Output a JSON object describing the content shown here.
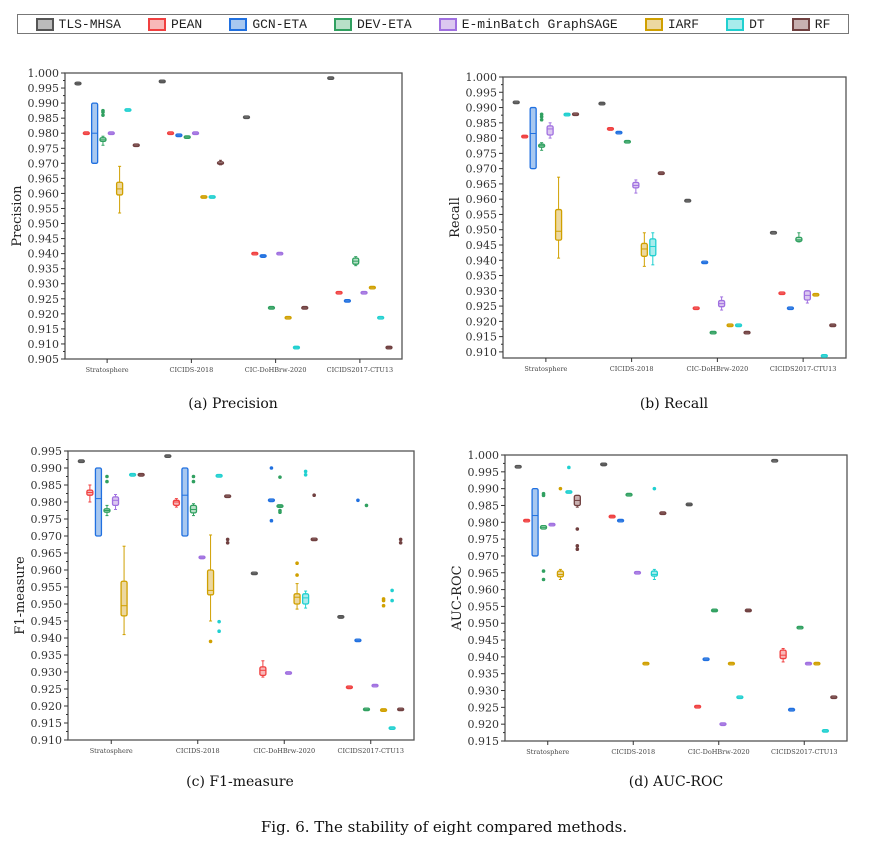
{
  "legend": [
    {
      "name": "TLS-MHSA",
      "edge": "#555555",
      "fill": "#bbbbbb"
    },
    {
      "name": "PEAN",
      "edge": "#f04040",
      "fill": "#f8b8b8"
    },
    {
      "name": "GCN-ETA",
      "edge": "#2070e0",
      "fill": "#a8c8f0"
    },
    {
      "name": "DEV-ETA",
      "edge": "#30a060",
      "fill": "#b8e0c8"
    },
    {
      "name": "E-minBatch GraphSAGE",
      "edge": "#a070e0",
      "fill": "#dcc8f0"
    },
    {
      "name": "IARF",
      "edge": "#d0a000",
      "fill": "#ecd8a0"
    },
    {
      "name": "DT",
      "edge": "#20d0d0",
      "fill": "#a8ecec"
    },
    {
      "name": "RF",
      "edge": "#704040",
      "fill": "#c8b0b0"
    }
  ],
  "caption": "Fig. 6.  The stability of eight compared methods.",
  "chart_data": [
    {
      "type": "box",
      "caption": "(a)  Precision",
      "ylabel": "Precision",
      "ylim": [
        0.905,
        1.0
      ],
      "ytick_step": 0.005,
      "categories": [
        "Stratosphere",
        "CICIDS-2018",
        "CIC-DoHBrw-2020",
        "CICIDS2017-CTU13"
      ],
      "values": [
        [
          [
            0.996,
            0.9962,
            0.9965,
            0.9968,
            0.997
          ],
          0.98,
          [
            0.97,
            0.97,
            0.98,
            0.99,
            0.99
          ],
          {
            "box": [
              0.976,
              0.9773,
              0.9778,
              0.9785,
              0.979
            ],
            "outliers": [
              0.986,
              0.987,
              0.9875
            ]
          },
          0.98,
          [
            0.9535,
            0.9595,
            0.9615,
            0.9637,
            0.969
          ],
          0.9877,
          0.976
        ],
        [
          0.9972,
          0.98,
          0.9793,
          0.9787,
          0.98,
          0.9588,
          0.9588,
          [
            0.9695,
            0.9697,
            0.97,
            0.9705,
            0.971
          ]
        ],
        [
          0.9853,
          0.94,
          0.9392,
          0.922,
          0.94,
          0.9187,
          0.9088,
          0.922
        ],
        [
          0.9983,
          0.927,
          0.9243,
          [
            0.936,
            0.9365,
            0.9375,
            0.9385,
            0.939
          ],
          0.927,
          0.9287,
          0.9187,
          0.9088
        ]
      ]
    },
    {
      "type": "box",
      "caption": "(b)  Recall",
      "ylabel": "Recall",
      "ylim": [
        0.908,
        1.0
      ],
      "ytick_step": 0.005,
      "categories": [
        "Stratosphere",
        "CICIDS-2018",
        "CIC-DoHBrw-2020",
        "CICIDS2017-CTU13"
      ],
      "values": [
        [
          0.9917,
          0.9805,
          [
            0.97,
            0.97,
            0.9815,
            0.99,
            0.99
          ],
          {
            "box": [
              0.976,
              0.977,
              0.9775,
              0.978,
              0.9785
            ],
            "outliers": [
              0.986,
              0.987,
              0.9878
            ]
          },
          [
            0.98,
            0.981,
            0.983,
            0.984,
            0.985
          ],
          [
            0.9407,
            0.9466,
            0.9495,
            0.9566,
            0.9672
          ],
          0.9877,
          0.9878
        ],
        [
          0.9913,
          0.983,
          0.9818,
          0.9788,
          [
            0.962,
            0.9637,
            0.9645,
            0.9655,
            0.9663
          ],
          [
            0.938,
            0.9413,
            0.9437,
            0.9455,
            0.949
          ],
          [
            0.9385,
            0.9415,
            0.9445,
            0.947,
            0.949
          ],
          0.9685
        ],
        [
          0.9595,
          0.9243,
          0.9393,
          0.9163,
          [
            0.9237,
            0.9248,
            0.9258,
            0.9268,
            0.928
          ],
          0.9187,
          0.9187,
          0.9163
        ],
        [
          0.949,
          0.9292,
          0.9243,
          [
            0.946,
            0.9462,
            0.9467,
            0.9475,
            0.949
          ],
          [
            0.926,
            0.927,
            0.9285,
            0.93,
            0.93
          ],
          0.9287,
          0.9087,
          0.9187
        ]
      ]
    },
    {
      "type": "box",
      "caption": "(c)  F1-measure",
      "ylabel": "F1-measure",
      "ylim": [
        0.91,
        0.995
      ],
      "ytick_step": 0.005,
      "categories": [
        "Stratosphere",
        "CICIDS-2018",
        "CIC-DoHBrw-2020",
        "CICIDS2017-CTU13"
      ],
      "values": [
        [
          0.992,
          [
            0.98,
            0.982,
            0.9828,
            0.9835,
            0.985
          ],
          [
            0.97,
            0.97,
            0.981,
            0.99,
            0.99
          ],
          {
            "box": [
              0.976,
              0.977,
              0.9775,
              0.978,
              0.979
            ],
            "outliers": [
              0.986,
              0.9875
            ]
          },
          [
            0.9778,
            0.979,
            0.9805,
            0.9815,
            0.9822
          ],
          [
            0.941,
            0.9465,
            0.9495,
            0.9567,
            0.967
          ],
          0.988,
          0.988
        ],
        [
          0.9935,
          [
            0.9785,
            0.979,
            0.98,
            0.9805,
            0.981
          ],
          [
            0.97,
            0.97,
            0.982,
            0.99,
            0.99
          ],
          {
            "box": [
              0.976,
              0.9768,
              0.9778,
              0.979,
              0.9795
            ],
            "outliers": [
              0.986,
              0.9875
            ]
          },
          0.9637,
          {
            "box": [
              0.945,
              0.9527,
              0.954,
              0.96,
              0.9703
            ],
            "outliers": [
              0.939
            ]
          },
          {
            "box": 0.9877,
            "outliers": [
              0.9448,
              0.942
            ]
          },
          {
            "box": 0.9817,
            "outliers": [
              0.969,
              0.968
            ]
          }
        ],
        [
          0.959,
          [
            0.9285,
            0.929,
            0.9305,
            0.9315,
            0.9333
          ],
          {
            "box": 0.9805,
            "outliers": [
              0.99,
              0.9745
            ]
          },
          {
            "box": 0.9788,
            "outliers": [
              0.9873,
              0.9775,
              0.977
            ]
          },
          0.9297,
          {
            "box": [
              0.9485,
              0.95,
              0.952,
              0.953,
              0.956
            ],
            "outliers": [
              0.9585,
              0.962
            ]
          },
          {
            "box": [
              0.9488,
              0.95,
              0.9518,
              0.953,
              0.9538
            ],
            "outliers": [
              0.988,
              0.989
            ]
          },
          {
            "box": 0.969,
            "outliers": [
              0.982
            ]
          }
        ],
        [
          0.9462,
          0.9255,
          {
            "box": 0.9393,
            "outliers": [
              0.9805
            ]
          },
          {
            "box": 0.919,
            "outliers": [
              0.979
            ]
          },
          0.926,
          {
            "box": 0.9188,
            "outliers": [
              0.9495,
              0.951,
              0.9515
            ]
          },
          {
            "box": 0.9135,
            "outliers": [
              0.951,
              0.954
            ]
          },
          {
            "box": 0.919,
            "outliers": [
              0.968,
              0.969
            ]
          }
        ]
      ]
    },
    {
      "type": "box",
      "caption": "(d)  AUC-ROC",
      "ylabel": "AUC-ROC",
      "ylim": [
        0.915,
        1.0
      ],
      "ytick_step": 0.005,
      "categories": [
        "Stratosphere",
        "CICIDS-2018",
        "CIC-DoHBrw-2020",
        "CICIDS2017-CTU13"
      ],
      "values": [
        [
          0.9965,
          0.9805,
          [
            0.97,
            0.97,
            0.982,
            0.99,
            0.99
          ],
          {
            "box": [
              0.978,
              0.978,
              0.9785,
              0.979,
              0.979
            ],
            "outliers": [
              0.9885,
              0.988,
              0.9655,
              0.963
            ]
          },
          0.9793,
          {
            "box": [
              0.963,
              0.9638,
              0.9645,
              0.9655,
              0.966
            ],
            "outliers": [
              0.99
            ]
          },
          {
            "box": 0.989,
            "outliers": [
              0.9963
            ]
          },
          {
            "box": [
              0.9845,
              0.985,
              0.9865,
              0.988,
              0.988
            ],
            "outliers": [
              0.978,
              0.973,
              0.972
            ]
          }
        ],
        [
          0.9972,
          0.9817,
          0.9805,
          0.9882,
          0.965,
          0.938,
          {
            "box": [
              0.963,
              0.964,
              0.9645,
              0.9655,
              0.966
            ],
            "outliers": [
              0.99
            ]
          },
          0.9827
        ],
        [
          0.9853,
          0.9252,
          0.9393,
          0.9538,
          0.92,
          0.938,
          0.928,
          0.9538
        ],
        [
          0.9983,
          [
            0.9385,
            0.9395,
            0.9405,
            0.942,
            0.9425
          ],
          0.9243,
          0.9487,
          0.938,
          0.938,
          0.918,
          0.928
        ]
      ]
    }
  ]
}
